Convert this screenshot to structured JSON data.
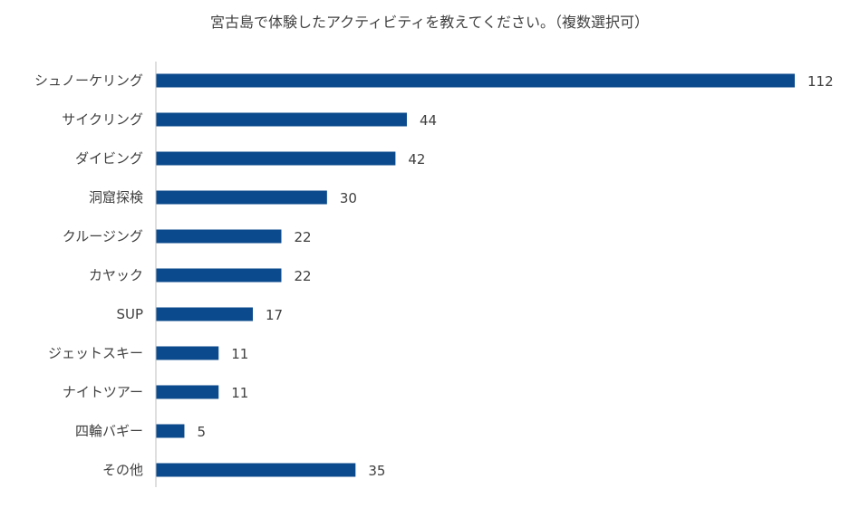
{
  "chart_data": {
    "type": "bar",
    "orientation": "horizontal",
    "title": "宮古島で体験したアクティビティを教えてください。（複数選択可）",
    "categories": [
      "シュノーケリング",
      "サイクリング",
      "ダイビング",
      "洞窟探検",
      "クルージング",
      "カヤック",
      "SUP",
      "ジェットスキー",
      "ナイトツアー",
      "四輪バギー",
      "その他"
    ],
    "values": [
      112,
      44,
      42,
      30,
      22,
      22,
      17,
      11,
      11,
      5,
      35
    ],
    "xlim": [
      0,
      112
    ],
    "grid": false,
    "legend": "none",
    "data_labels": true,
    "bar_color": "#0B4A8C",
    "axis_color": "#BFBFBF"
  }
}
